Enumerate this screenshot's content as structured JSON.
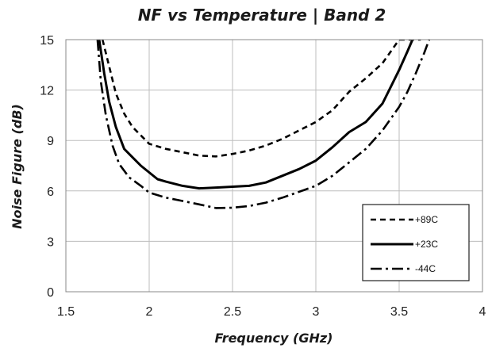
{
  "chart_data": {
    "type": "line",
    "title": "NF vs Temperature  |  Band 2",
    "xlabel": "Frequency (GHz)",
    "ylabel": "Noise Figure (dB)",
    "xlim": [
      1.5,
      4
    ],
    "ylim": [
      0,
      15
    ],
    "xticks": [
      "1.5",
      "2",
      "2.5",
      "3",
      "3.5",
      "4"
    ],
    "yticks": [
      "0",
      "3",
      "6",
      "9",
      "12",
      "15"
    ],
    "grid": true,
    "legend_position": "bottom-right",
    "series": [
      {
        "name": "+89C",
        "style": "dashed",
        "color": "#000000",
        "x": [
          1.72,
          1.75,
          1.8,
          1.85,
          1.9,
          2.0,
          2.1,
          2.2,
          2.3,
          2.4,
          2.5,
          2.6,
          2.7,
          2.8,
          2.9,
          3.0,
          3.1,
          3.2,
          3.3,
          3.4,
          3.5,
          3.55,
          3.6,
          3.63
        ],
        "y": [
          15.0,
          13.8,
          11.8,
          10.6,
          9.8,
          8.8,
          8.5,
          8.3,
          8.1,
          8.05,
          8.2,
          8.4,
          8.7,
          9.1,
          9.6,
          10.1,
          10.8,
          11.9,
          12.7,
          13.6,
          15.0,
          15.0,
          15.0,
          15.0
        ]
      },
      {
        "name": "+23C",
        "style": "solid",
        "color": "#000000",
        "x": [
          1.7,
          1.73,
          1.76,
          1.8,
          1.85,
          1.9,
          1.95,
          2.0,
          2.05,
          2.1,
          2.2,
          2.3,
          2.4,
          2.5,
          2.6,
          2.7,
          2.8,
          2.9,
          3.0,
          3.1,
          3.2,
          3.3,
          3.4,
          3.45,
          3.5,
          3.55,
          3.58
        ],
        "y": [
          15.0,
          13.0,
          11.3,
          9.8,
          8.5,
          8.0,
          7.5,
          7.1,
          6.7,
          6.55,
          6.3,
          6.15,
          6.2,
          6.25,
          6.3,
          6.5,
          6.9,
          7.3,
          7.8,
          8.6,
          9.5,
          10.1,
          11.2,
          12.2,
          13.2,
          14.3,
          15.0
        ]
      },
      {
        "name": "-44C",
        "style": "dash-dot",
        "color": "#000000",
        "x": [
          1.69,
          1.71,
          1.74,
          1.78,
          1.82,
          1.88,
          1.95,
          2.0,
          2.1,
          2.2,
          2.3,
          2.4,
          2.5,
          2.6,
          2.7,
          2.8,
          2.9,
          3.0,
          3.1,
          3.2,
          3.3,
          3.4,
          3.5,
          3.55,
          3.6,
          3.65,
          3.68
        ],
        "y": [
          15.0,
          12.5,
          10.5,
          8.7,
          7.6,
          6.8,
          6.3,
          5.9,
          5.6,
          5.4,
          5.2,
          4.98,
          5.0,
          5.1,
          5.3,
          5.6,
          5.95,
          6.3,
          6.9,
          7.7,
          8.5,
          9.6,
          11.0,
          11.9,
          13.0,
          14.2,
          15.0
        ]
      }
    ]
  }
}
